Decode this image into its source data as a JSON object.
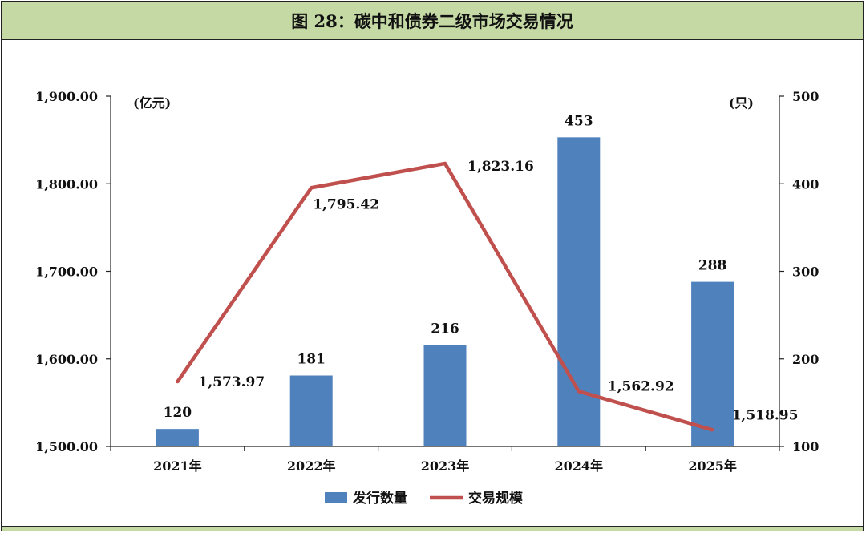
{
  "title": "图 28：碳中和债券二级市场交易情况",
  "chart_data": {
    "type": "bar",
    "categories": [
      "2021年",
      "2022年",
      "2023年",
      "2024年",
      "2025年"
    ],
    "series": [
      {
        "name": "发行数量",
        "type": "bar",
        "axis": "right",
        "color": "#4f81bd",
        "values": [
          120,
          181,
          216,
          453,
          288
        ],
        "labels": [
          "120",
          "181",
          "216",
          "453",
          "288"
        ]
      },
      {
        "name": "交易规模",
        "type": "line",
        "axis": "left",
        "color": "#c0504d",
        "values": [
          1573.97,
          1795.42,
          1823.16,
          1562.92,
          1518.95
        ],
        "labels": [
          "1,573.97",
          "1,795.42",
          "1,823.16",
          "1,562.92",
          "1,518.95"
        ]
      }
    ],
    "left_axis": {
      "unit": "(亿元)",
      "ylim": [
        1500,
        1900
      ],
      "ticks": [
        "1,500.00",
        "1,600.00",
        "1,700.00",
        "1,800.00",
        "1,900.00"
      ]
    },
    "right_axis": {
      "unit": "(只)",
      "ylim": [
        100,
        500
      ],
      "ticks": [
        "100",
        "200",
        "300",
        "400",
        "500"
      ]
    },
    "legend": {
      "position": "bottom-center"
    },
    "grid": false
  }
}
